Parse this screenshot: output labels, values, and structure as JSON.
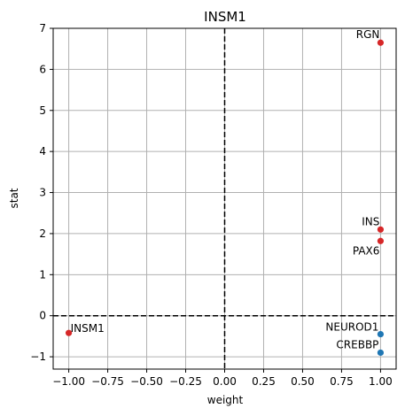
{
  "chart_data": {
    "type": "scatter",
    "title": "INSM1",
    "xlabel": "weight",
    "ylabel": "stat",
    "xlim": [
      -1.1,
      1.1
    ],
    "ylim": [
      -1.3,
      7.0
    ],
    "xticks": [
      -1.0,
      -0.75,
      -0.5,
      -0.25,
      0.0,
      0.25,
      0.5,
      0.75,
      1.0
    ],
    "xtick_labels": [
      "−1.00",
      "−0.75",
      "−0.50",
      "−0.25",
      "0.00",
      "0.25",
      "0.50",
      "0.75",
      "1.00"
    ],
    "yticks": [
      -1,
      0,
      1,
      2,
      3,
      4,
      5,
      6,
      7
    ],
    "ytick_labels": [
      "−1",
      "0",
      "1",
      "2",
      "3",
      "4",
      "5",
      "6",
      "7"
    ],
    "grid": true,
    "reference_lines": {
      "x": 0,
      "y": 0,
      "style": "dashed"
    },
    "colors": {
      "positive": "#d62728",
      "negative": "#1f77b4",
      "grid": "#b0b0b0"
    },
    "points": [
      {
        "label": "RGN",
        "x": 1.0,
        "y": 6.65,
        "color": "#d62728"
      },
      {
        "label": "INS",
        "x": 1.0,
        "y": 2.1,
        "color": "#d62728"
      },
      {
        "label": "PAX6",
        "x": 1.0,
        "y": 1.82,
        "color": "#d62728"
      },
      {
        "label": "INSM1",
        "x": -1.0,
        "y": -0.42,
        "color": "#d62728"
      },
      {
        "label": "NEUROD1",
        "x": 1.0,
        "y": -0.45,
        "color": "#1f77b4"
      },
      {
        "label": "CREBBP",
        "x": 1.0,
        "y": -0.9,
        "color": "#1f77b4"
      }
    ]
  }
}
